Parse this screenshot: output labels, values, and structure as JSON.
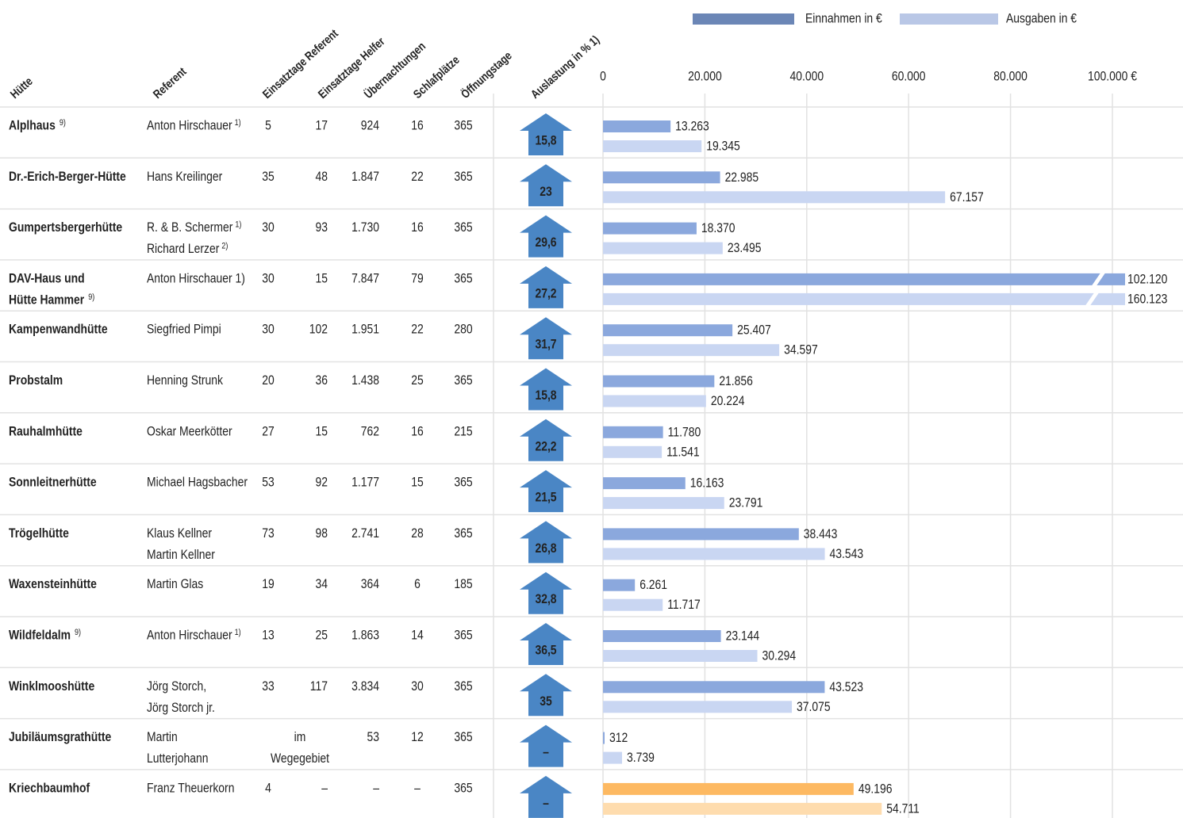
{
  "columns": [
    "Hütte",
    "Referent",
    "Einsatztage Referent",
    "Einsatztage Helfer",
    "Übernachtungen",
    "Schlafplätze",
    "Öffnungstage",
    "Auslastung in % 1)"
  ],
  "legend": [
    {
      "name": "Einnahmen in €",
      "color": "#6b86b6"
    },
    {
      "name": "Ausgaben in €",
      "color": "#b9c7e6"
    }
  ],
  "bar_colors": {
    "einnahmen": "#8ba8dd",
    "ausgaben": "#c9d6f2"
  },
  "house_color": "#4a86c5",
  "xlim": [
    0,
    100000
  ],
  "xticks": [
    0,
    {
      "value": 20000,
      "label": "20.000"
    },
    {
      "value": 40000,
      "label": "40.000"
    },
    {
      "value": 60000,
      "label": "60.000"
    },
    {
      "value": 80000,
      "label": "80.000"
    },
    {
      "value": 100000,
      "label": "100.000 €"
    }
  ],
  "rows": [
    {
      "huette": [
        "Alplhaus"
      ],
      "huette_note": "9)",
      "referent": [
        "Anton Hirschauer"
      ],
      "referent_notes": [
        "1)"
      ],
      "cells": [
        "5",
        "17",
        "924",
        "16",
        "365"
      ],
      "auslastung": "15,8",
      "einnahmen": 13263,
      "einnahmen_label": "13.263",
      "ausgaben": 19345,
      "ausgaben_label": "19.345"
    },
    {
      "huette": [
        "Dr.-Erich-Berger-Hütte"
      ],
      "referent": [
        "Hans Kreilinger"
      ],
      "cells": [
        "35",
        "48",
        "1.847",
        "22",
        "365"
      ],
      "auslastung": "23",
      "einnahmen": 22985,
      "einnahmen_label": "22.985",
      "ausgaben": 67157,
      "ausgaben_label": "67.157"
    },
    {
      "huette": [
        "Gumpertsbergerhütte"
      ],
      "referent": [
        "R. & B. Schermer",
        "Richard Lerzer"
      ],
      "referent_notes": [
        "1)",
        "2)"
      ],
      "cells": [
        "30",
        "93",
        "1.730",
        "16",
        "365"
      ],
      "auslastung": "29,6",
      "einnahmen": 18370,
      "einnahmen_label": "18.370",
      "ausgaben": 23495,
      "ausgaben_label": "23.495"
    },
    {
      "huette": [
        "DAV-Haus und",
        "Hütte Hammer"
      ],
      "huette_note": "9)",
      "referent": [
        "Anton Hirschauer 1)"
      ],
      "cells": [
        "30",
        "15",
        "7.847",
        "79",
        "365"
      ],
      "auslastung": "27,2",
      "einnahmen": 102120,
      "einnahmen_label": "102.120",
      "ausgaben": 160123,
      "ausgaben_label": "160.123"
    },
    {
      "huette": [
        "Kampenwandhütte"
      ],
      "referent": [
        "Siegfried Pimpi"
      ],
      "cells": [
        "30",
        "102",
        "1.951",
        "22",
        "280"
      ],
      "auslastung": "31,7",
      "einnahmen": 25407,
      "einnahmen_label": "25.407",
      "ausgaben": 34597,
      "ausgaben_label": "34.597"
    },
    {
      "huette": [
        "Probstalm"
      ],
      "referent": [
        "Henning Strunk"
      ],
      "cells": [
        "20",
        "36",
        "1.438",
        "25",
        "365"
      ],
      "auslastung": "15,8",
      "einnahmen": 21856,
      "einnahmen_label": "21.856",
      "ausgaben": 20224,
      "ausgaben_label": "20.224"
    },
    {
      "huette": [
        "Rauhalmhütte"
      ],
      "referent": [
        "Oskar Meerkötter"
      ],
      "cells": [
        "27",
        "15",
        "762",
        "16",
        "215"
      ],
      "auslastung": "22,2",
      "einnahmen": 11780,
      "einnahmen_label": "11.780",
      "ausgaben": 11541,
      "ausgaben_label": "11.541"
    },
    {
      "huette": [
        "Sonnleitnerhütte"
      ],
      "referent": [
        "Michael Hagsbacher"
      ],
      "cells": [
        "53",
        "92",
        "1.177",
        "15",
        "365"
      ],
      "auslastung": "21,5",
      "einnahmen": 16163,
      "einnahmen_label": "16.163",
      "ausgaben": 23791,
      "ausgaben_label": "23.791"
    },
    {
      "huette": [
        "Trögelhütte"
      ],
      "referent": [
        "Klaus Kellner",
        "Martin Kellner"
      ],
      "cells": [
        "73",
        "98",
        "2.741",
        "28",
        "365"
      ],
      "auslastung": "26,8",
      "einnahmen": 38443,
      "einnahmen_label": "38.443",
      "ausgaben": 43543,
      "ausgaben_label": "43.543"
    },
    {
      "huette": [
        "Waxensteinhütte"
      ],
      "referent": [
        "Martin Glas"
      ],
      "cells": [
        "19",
        "34",
        "364",
        "6",
        "185"
      ],
      "auslastung": "32,8",
      "einnahmen": 6261,
      "einnahmen_label": "6.261",
      "ausgaben": 11717,
      "ausgaben_label": "11.717"
    },
    {
      "huette": [
        "Wildfeldalm"
      ],
      "huette_note": "9)",
      "referent": [
        "Anton Hirschauer"
      ],
      "referent_notes": [
        "1)"
      ],
      "cells": [
        "13",
        "25",
        "1.863",
        "14",
        "365"
      ],
      "auslastung": "36,5",
      "einnahmen": 23144,
      "einnahmen_label": "23.144",
      "ausgaben": 30294,
      "ausgaben_label": "30.294"
    },
    {
      "huette": [
        "Winklmooshütte"
      ],
      "referent": [
        "Jörg Storch,",
        "Jörg Storch jr."
      ],
      "cells": [
        "33",
        "117",
        "3.834",
        "30",
        "365"
      ],
      "auslastung": "35",
      "einnahmen": 43523,
      "einnahmen_label": "43.523",
      "ausgaben": 37075,
      "ausgaben_label": "37.075"
    },
    {
      "huette": [
        "Jubiläumsgrathütte"
      ],
      "referent": [
        "Martin",
        "Lutterjohann"
      ],
      "span": [
        "im",
        "Wegegebiet"
      ],
      "cells": [
        "53",
        "12",
        "365"
      ],
      "auslastung": "–",
      "einnahmen": 312,
      "einnahmen_label": "312",
      "ausgaben": 3739,
      "ausgaben_label": "3.739"
    },
    {
      "huette": [
        "Kriechbaumhof"
      ],
      "referent": [
        "Franz Theuerkorn"
      ],
      "cells": [
        "4",
        "–",
        "–",
        "–",
        "365"
      ],
      "auslastung": "–",
      "einnahmen": 49196,
      "einnahmen_label": "49.196",
      "ausgaben": 54711,
      "ausgaben_label": "54.711",
      "colors": {
        "einnahmen": "#fdb962",
        "ausgaben": "#fedcae"
      }
    }
  ]
}
